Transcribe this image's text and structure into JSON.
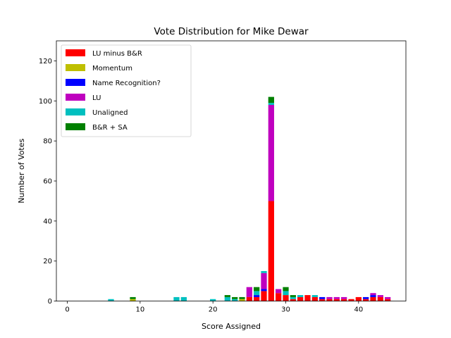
{
  "chart_data": {
    "type": "bar",
    "stacked": true,
    "title": "Vote Distribution for Mike Dewar",
    "xlabel": "Score Assigned",
    "ylabel": "Number of Votes",
    "xlim": [
      -1.5,
      46.5
    ],
    "ylim": [
      0,
      130
    ],
    "xticks": [
      0,
      10,
      20,
      30,
      40
    ],
    "yticks": [
      0,
      20,
      40,
      60,
      80,
      100,
      120
    ],
    "grid": false,
    "legend_position": "top-left",
    "x": [
      6,
      9,
      15,
      16,
      20,
      22,
      23,
      24,
      25,
      26,
      27,
      28,
      29,
      30,
      31,
      32,
      33,
      34,
      35,
      36,
      37,
      38,
      39,
      40,
      41,
      42,
      43,
      44
    ],
    "series": [
      {
        "name": "LU minus B&R",
        "color": "#ff0000",
        "values": [
          0,
          0,
          0,
          0,
          0,
          0,
          0,
          0,
          2,
          2,
          5,
          50,
          4,
          3,
          1,
          2,
          3,
          2,
          1,
          1,
          1,
          1,
          1,
          2,
          1,
          2,
          2,
          1
        ]
      },
      {
        "name": "Momentum",
        "color": "#bfbf00",
        "values": [
          0,
          1,
          0,
          0,
          0,
          0,
          0,
          1,
          0,
          0,
          0,
          0,
          0,
          0,
          0,
          0,
          0,
          0,
          0,
          0,
          0,
          0,
          0,
          0,
          0,
          0,
          0,
          0
        ]
      },
      {
        "name": "Name Recognition?",
        "color": "#0000ff",
        "values": [
          0,
          0,
          0,
          0,
          0,
          0,
          0,
          0,
          0,
          1,
          1,
          0,
          0,
          0,
          0,
          0,
          0,
          0,
          1,
          0,
          0,
          0,
          0,
          0,
          1,
          1,
          0,
          0
        ]
      },
      {
        "name": "LU",
        "color": "#bf00bf",
        "values": [
          0,
          0,
          0,
          0,
          0,
          0,
          0,
          0,
          5,
          0,
          8,
          48,
          2,
          0,
          0,
          0,
          0,
          0,
          0,
          1,
          1,
          1,
          0,
          0,
          0,
          1,
          1,
          1
        ]
      },
      {
        "name": "Unaligned",
        "color": "#00bfbf",
        "values": [
          1,
          0,
          2,
          2,
          1,
          2,
          1,
          0,
          0,
          2,
          1,
          1,
          0,
          2,
          1,
          1,
          0,
          1,
          0,
          0,
          0,
          0,
          0,
          0,
          0,
          0,
          0,
          0
        ]
      },
      {
        "name": "B&R + SA",
        "color": "#008000",
        "values": [
          0,
          1,
          0,
          0,
          0,
          1,
          1,
          1,
          0,
          2,
          0,
          3,
          0,
          2,
          1,
          0,
          0,
          0,
          0,
          0,
          0,
          0,
          0,
          0,
          0,
          0,
          0,
          0
        ]
      }
    ]
  }
}
